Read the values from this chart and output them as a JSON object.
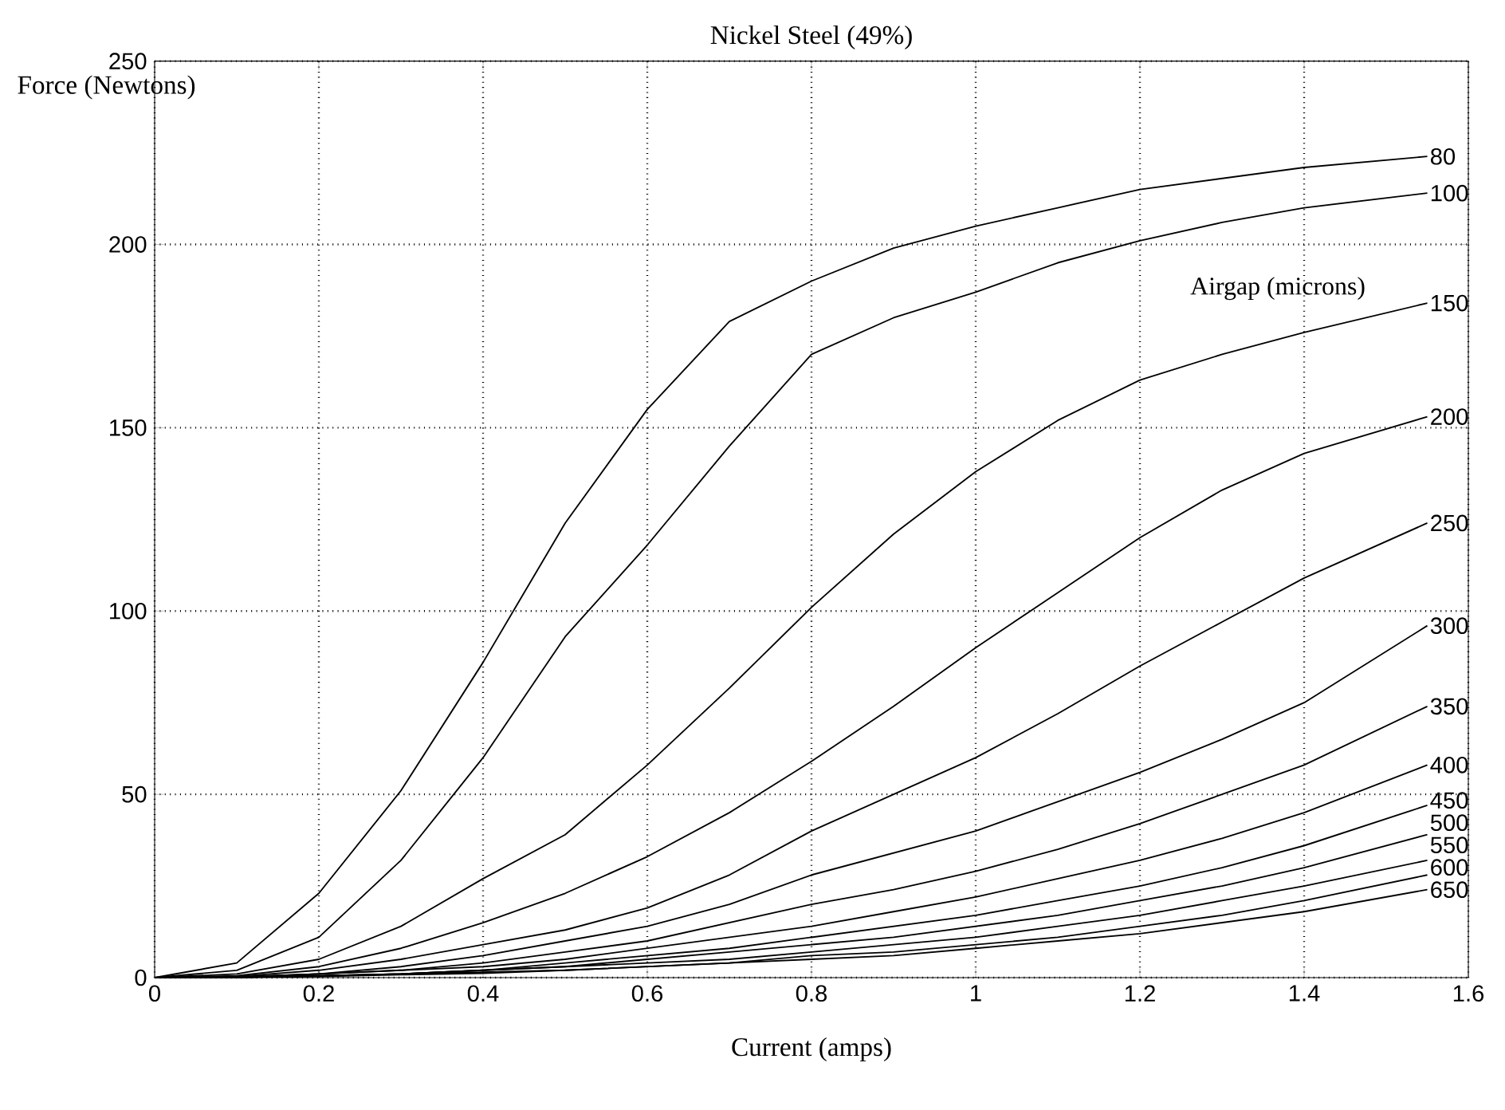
{
  "chart_data": {
    "type": "line",
    "title": "Nickel Steel (49%)",
    "xlabel": "Current (amps)",
    "ylabel": "Force (Newtons)",
    "annotations": [
      "Airgap (microns)"
    ],
    "x": [
      0,
      0.1,
      0.2,
      0.3,
      0.4,
      0.5,
      0.6,
      0.7,
      0.8,
      0.9,
      1.0,
      1.1,
      1.2,
      1.3,
      1.4,
      1.55
    ],
    "series": [
      {
        "name": "80",
        "color": "#000000",
        "values": [
          0,
          4,
          23,
          51,
          86,
          124,
          155,
          179,
          190,
          199,
          205,
          210,
          215,
          218,
          221,
          224
        ]
      },
      {
        "name": "100",
        "color": "#000000",
        "values": [
          0,
          2,
          11,
          32,
          60,
          93,
          118,
          145,
          170,
          180,
          187,
          195,
          201,
          206,
          210,
          214
        ]
      },
      {
        "name": "150",
        "color": "#000000",
        "values": [
          0,
          1,
          5,
          14,
          27,
          39,
          58,
          79,
          101,
          121,
          138,
          152,
          163,
          170,
          176,
          184
        ]
      },
      {
        "name": "200",
        "color": "#000000",
        "values": [
          0,
          0.5,
          3,
          8,
          15,
          23,
          33,
          45,
          59,
          74,
          90,
          105,
          120,
          133,
          143,
          153
        ]
      },
      {
        "name": "250",
        "color": "#000000",
        "values": [
          0,
          0.3,
          2,
          5,
          9,
          13,
          19,
          28,
          40,
          50,
          60,
          72,
          85,
          97,
          109,
          124
        ]
      },
      {
        "name": "300",
        "color": "#000000",
        "values": [
          0,
          0.2,
          1,
          3,
          6,
          10,
          14,
          20,
          28,
          34,
          40,
          48,
          56,
          65,
          75,
          96
        ]
      },
      {
        "name": "350",
        "color": "#000000",
        "values": [
          0,
          0.2,
          1,
          2,
          4,
          7,
          10,
          15,
          20,
          24,
          29,
          35,
          42,
          50,
          58,
          74
        ]
      },
      {
        "name": "400",
        "color": "#000000",
        "values": [
          0,
          0.1,
          1,
          2,
          3,
          5,
          8,
          11,
          14,
          18,
          22,
          27,
          32,
          38,
          45,
          58
        ]
      },
      {
        "name": "450",
        "color": "#000000",
        "values": [
          0,
          0.1,
          0.5,
          1,
          2,
          4,
          6,
          8,
          11,
          14,
          17,
          21,
          25,
          30,
          36,
          47
        ]
      },
      {
        "name": "500",
        "color": "#000000",
        "values": [
          0,
          0.1,
          0.5,
          1,
          2,
          3,
          5,
          7,
          9,
          11,
          14,
          17,
          21,
          25,
          30,
          39
        ]
      },
      {
        "name": "550",
        "color": "#000000",
        "values": [
          0,
          0.1,
          0.5,
          1,
          2,
          3,
          4,
          5,
          7,
          9,
          11,
          14,
          17,
          21,
          25,
          32
        ]
      },
      {
        "name": "600",
        "color": "#000000",
        "values": [
          0,
          0.1,
          0.4,
          1,
          1.5,
          2,
          3,
          4,
          6,
          7,
          9,
          11,
          14,
          17,
          21,
          28
        ]
      },
      {
        "name": "650",
        "color": "#000000",
        "values": [
          0,
          0.1,
          0.3,
          0.8,
          1.2,
          2,
          3,
          4,
          5,
          6,
          8,
          10,
          12,
          15,
          18,
          24
        ]
      }
    ],
    "xlim": [
      0,
      1.6
    ],
    "xticks": [
      0,
      0.2,
      0.4,
      0.6,
      0.8,
      1,
      1.2,
      1.4,
      1.6
    ],
    "ylim": [
      0,
      250
    ],
    "yticks": [
      0,
      50,
      100,
      150,
      200,
      250
    ],
    "grid": true,
    "line_style": "solid"
  }
}
